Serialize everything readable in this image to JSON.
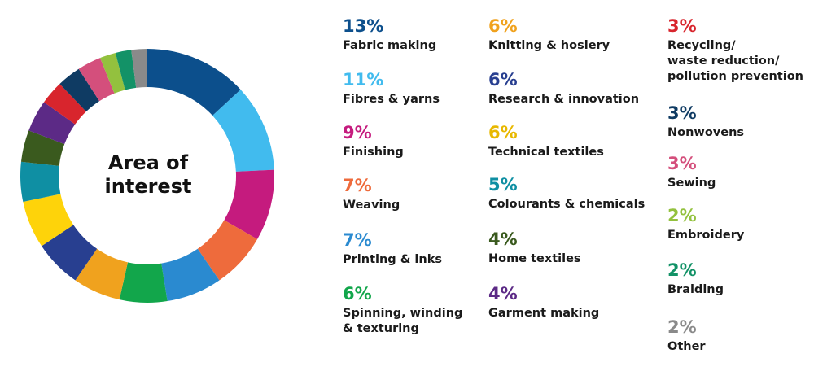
{
  "chart_data": {
    "type": "pie",
    "variant": "donut",
    "title": "Area of\ninterest",
    "slices": [
      {
        "label": "Fabric making",
        "value": 13,
        "display": "13%",
        "color": "#0c4f8c"
      },
      {
        "label": "Fibres & yarns",
        "value": 11,
        "display": "11%",
        "color": "#41bbee"
      },
      {
        "label": "Finishing",
        "value": 9,
        "display": "9%",
        "color": "#c51b7e"
      },
      {
        "label": "Weaving",
        "value": 7,
        "display": "7%",
        "color": "#ee6b3c"
      },
      {
        "label": "Printing & inks",
        "value": 7,
        "display": "7%",
        "color": "#2a8ad0"
      },
      {
        "label": "Spinning, winding\n& texturing",
        "value": 6,
        "display": "6%",
        "color": "#12a64b"
      },
      {
        "label": "Knitting & hosiery",
        "value": 6,
        "display": "6%",
        "color": "#f0a21e"
      },
      {
        "label": "Research & innovation",
        "value": 6,
        "display": "6%",
        "color": "#283f90"
      },
      {
        "label": "Technical textiles",
        "value": 6,
        "display": "6%",
        "color": "#fed30a"
      },
      {
        "label": "Colourants & chemicals",
        "value": 5,
        "display": "5%",
        "color": "#0f8fa3"
      },
      {
        "label": "Home textiles",
        "value": 4,
        "display": "4%",
        "color": "#3a5a1e"
      },
      {
        "label": "Garment making",
        "value": 4,
        "display": "4%",
        "color": "#5c2a86"
      },
      {
        "label": "Recycling/\nwaste reduction/\npollution prevention",
        "value": 3,
        "display": "3%",
        "color": "#d8252d"
      },
      {
        "label": "Nonwovens",
        "value": 3,
        "display": "3%",
        "color": "#0f3b63"
      },
      {
        "label": "Sewing",
        "value": 3,
        "display": "3%",
        "color": "#d44f7c"
      },
      {
        "label": "Embroidery",
        "value": 2,
        "display": "2%",
        "color": "#93c13e"
      },
      {
        "label": "Braiding",
        "value": 2,
        "display": "2%",
        "color": "#139267"
      },
      {
        "label": "Other",
        "value": 2,
        "display": "2%",
        "color": "#8a8a8a"
      }
    ]
  }
}
